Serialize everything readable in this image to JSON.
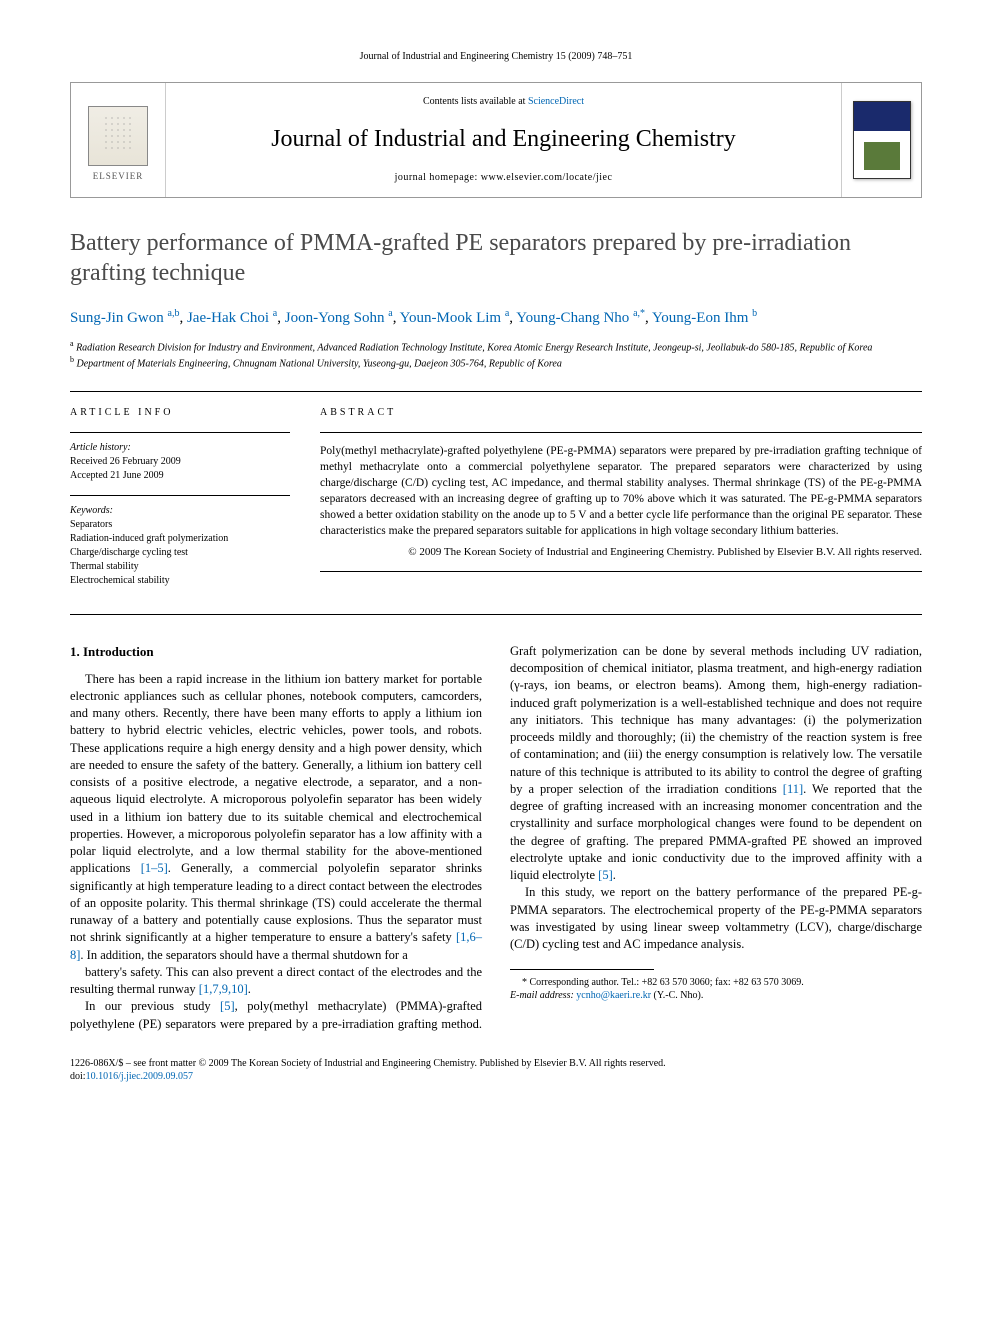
{
  "journal_ref": "Journal of Industrial and Engineering Chemistry 15 (2009) 748–751",
  "header": {
    "contents_prefix": "Contents lists available at ",
    "contents_link": "ScienceDirect",
    "journal_title": "Journal of Industrial and Engineering Chemistry",
    "homepage_prefix": "journal homepage: ",
    "homepage_url": "www.elsevier.com/locate/jiec",
    "publisher": "ELSEVIER"
  },
  "title": "Battery performance of PMMA-grafted PE separators prepared by pre-irradiation grafting technique",
  "authors_html": "Sung-Jin Gwon|a,b|, Jae-Hak Choi|a|, Joon-Yong Sohn|a|, Youn-Mook Lim|a|, Young-Chang Nho|a,*|, Young-Eon Ihm|b|",
  "affiliations": [
    {
      "sup": "a",
      "text": "Radiation Research Division for Industry and Environment, Advanced Radiation Technology Institute, Korea Atomic Energy Research Institute, Jeongeup-si, Jeollabuk-do 580-185, Republic of Korea"
    },
    {
      "sup": "b",
      "text": "Department of Materials Engineering, Chnugnam National University, Yuseong-gu, Daejeon 305-764, Republic of Korea"
    }
  ],
  "article_info": {
    "head": "ARTICLE INFO",
    "history_label": "Article history:",
    "received": "Received 26 February 2009",
    "accepted": "Accepted 21 June 2009",
    "keywords_label": "Keywords:",
    "keywords": [
      "Separators",
      "Radiation-induced graft polymerization",
      "Charge/discharge cycling test",
      "Thermal stability",
      "Electrochemical stability"
    ]
  },
  "abstract": {
    "head": "ABSTRACT",
    "text": "Poly(methyl methacrylate)-grafted polyethylene (PE-g-PMMA) separators were prepared by pre-irradiation grafting technique of methyl methacrylate onto a commercial polyethylene separator. The prepared separators were characterized by using charge/discharge (C/D) cycling test, AC impedance, and thermal stability analyses. Thermal shrinkage (TS) of the PE-g-PMMA separators decreased with an increasing degree of grafting up to 70% above which it was saturated. The PE-g-PMMA separators showed a better oxidation stability on the anode up to 5 V and a better cycle life performance than the original PE separator. These characteristics make the prepared separators suitable for applications in high voltage secondary lithium batteries.",
    "copyright": "© 2009 The Korean Society of Industrial and Engineering Chemistry. Published by Elsevier B.V. All rights reserved."
  },
  "section_heading": "1. Introduction",
  "paragraphs": [
    "There has been a rapid increase in the lithium ion battery market for portable electronic appliances such as cellular phones, notebook computers, camcorders, and many others. Recently, there have been many efforts to apply a lithium ion battery to hybrid electric vehicles, electric vehicles, power tools, and robots. These applications require a high energy density and a high power density, which are needed to ensure the safety of the battery. Generally, a lithium ion battery cell consists of a positive electrode, a negative electrode, a separator, and a non-aqueous liquid electrolyte. A microporous polyolefin separator has been widely used in a lithium ion battery due to its suitable chemical and electrochemical properties. However, a microporous polyolefin separator has a low affinity with a polar liquid electrolyte, and a low thermal stability for the above-mentioned applications [1–5]. Generally, a commercial polyolefin separator shrinks significantly at high temperature leading to a direct contact between the electrodes of an opposite polarity. This thermal shrinkage (TS) could accelerate the thermal runaway of a battery and potentially cause explosions. Thus the separator must not shrink significantly at a higher temperature to ensure a battery's safety [1,6–8]. In addition, the separators should have a thermal shutdown for a",
    "battery's safety. This can also prevent a direct contact of the electrodes and the resulting thermal runway [1,7,9,10].",
    "In our previous study [5], poly(methyl methacrylate) (PMMA)-grafted polyethylene (PE) separators were prepared by a pre-irradiation grafting method. Graft polymerization can be done by several methods including UV radiation, decomposition of chemical initiator, plasma treatment, and high-energy radiation (γ-rays, ion beams, or electron beams). Among them, high-energy radiation-induced graft polymerization is a well-established technique and does not require any initiators. This technique has many advantages: (i) the polymerization proceeds mildly and thoroughly; (ii) the chemistry of the reaction system is free of contamination; and (iii) the energy consumption is relatively low. The versatile nature of this technique is attributed to its ability to control the degree of grafting by a proper selection of the irradiation conditions [11]. We reported that the degree of grafting increased with an increasing monomer concentration and the crystallinity and surface morphological changes were found to be dependent on the degree of grafting. The prepared PMMA-grafted PE showed an improved electrolyte uptake and ionic conductivity due to the improved affinity with a liquid electrolyte [5].",
    "In this study, we report on the battery performance of the prepared PE-g-PMMA separators. The electrochemical property of the PE-g-PMMA separators was investigated by using linear sweep voltammetry (LCV), charge/discharge (C/D) cycling test and AC impedance analysis."
  ],
  "ref_links": [
    "[1–5]",
    "[1,6–8]",
    "[1,7,9,10]",
    "[5]",
    "[11]",
    "[5]"
  ],
  "corresponding": {
    "line1": "* Corresponding author. Tel.: +82 63 570 3060; fax: +82 63 570 3069.",
    "email_label": "E-mail address:",
    "email": "ycnho@kaeri.re.kr",
    "email_name": " (Y.-C. Nho)."
  },
  "footer": {
    "issn": "1226-086X/$ – see front matter © 2009 The Korean Society of Industrial and Engineering Chemistry. Published by Elsevier B.V. All rights reserved.",
    "doi_label": "doi:",
    "doi": "10.1016/j.jiec.2009.09.057"
  },
  "colors": {
    "link": "#0066b3",
    "title": "#4a4a4a",
    "cover_top": "#1a2a6c",
    "cover_img": "#5a7a3a"
  }
}
